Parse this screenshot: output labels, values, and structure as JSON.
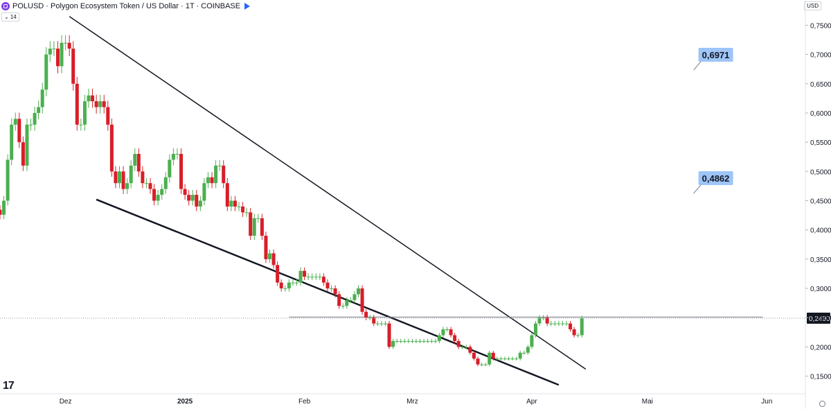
{
  "header": {
    "symbol_line": "POLUSD · Polygon Ecosystem Token / US Dollar · 1T · COINBASE",
    "interval_chip": "⌄ 14",
    "currency": "USD"
  },
  "chart_data": {
    "type": "candlestick",
    "y_ticks": [
      "0,7500",
      "0,7000",
      "0,6500",
      "0,6000",
      "0,5500",
      "0,5000",
      "0,4500",
      "0,4000",
      "0,3500",
      "0,3000",
      "0,2500",
      "0,2000",
      "0,1500"
    ],
    "x_ticks": [
      {
        "label": "Dez",
        "date": "2024-12-01"
      },
      {
        "label": "2025",
        "date": "2025-01-01"
      },
      {
        "label": "Feb",
        "date": "2025-02-01"
      },
      {
        "label": "Mrz",
        "date": "2025-03-01"
      },
      {
        "label": "Apr",
        "date": "2025-04-01"
      },
      {
        "label": "Mai",
        "date": "2025-05-01"
      },
      {
        "label": "Jun",
        "date": "2025-06-01"
      }
    ],
    "ylim": [
      0.13,
      0.77
    ],
    "x_range": [
      "2024-11-14",
      "2025-06-11"
    ],
    "first_date": "2024-11-14",
    "closes": [
      0.426,
      0.45,
      0.52,
      0.58,
      0.59,
      0.55,
      0.51,
      0.58,
      0.58,
      0.6,
      0.61,
      0.64,
      0.7,
      0.71,
      0.71,
      0.68,
      0.72,
      0.72,
      0.71,
      0.65,
      0.58,
      0.58,
      0.62,
      0.63,
      0.62,
      0.61,
      0.62,
      0.61,
      0.58,
      0.5,
      0.48,
      0.5,
      0.47,
      0.48,
      0.51,
      0.53,
      0.5,
      0.48,
      0.48,
      0.47,
      0.45,
      0.46,
      0.47,
      0.49,
      0.52,
      0.53,
      0.53,
      0.47,
      0.46,
      0.45,
      0.46,
      0.44,
      0.45,
      0.48,
      0.49,
      0.48,
      0.51,
      0.51,
      0.48,
      0.44,
      0.45,
      0.44,
      0.44,
      0.43,
      0.43,
      0.39,
      0.42,
      0.42,
      0.39,
      0.35,
      0.36,
      0.34,
      0.31,
      0.3,
      0.3,
      0.31,
      0.31,
      0.31,
      0.33,
      0.32,
      0.32,
      0.32,
      0.32,
      0.32,
      0.31,
      0.3,
      0.3,
      0.29,
      0.27,
      0.27,
      0.28,
      0.28,
      0.29,
      0.3,
      0.26,
      0.25,
      0.25,
      0.24,
      0.24,
      0.24,
      0.24,
      0.2,
      0.21,
      0.21,
      0.21,
      0.21,
      0.21,
      0.21,
      0.21,
      0.21,
      0.21,
      0.21,
      0.21,
      0.21,
      0.22,
      0.23,
      0.23,
      0.22,
      0.21,
      0.2,
      0.2,
      0.2,
      0.19,
      0.18,
      0.17,
      0.17,
      0.17,
      0.19,
      0.18,
      0.18,
      0.18,
      0.18,
      0.18,
      0.18,
      0.18,
      0.19,
      0.19,
      0.2,
      0.22,
      0.24,
      0.25,
      0.25,
      0.24,
      0.24,
      0.24,
      0.24,
      0.24,
      0.24,
      0.23,
      0.22,
      0.22,
      0.249
    ],
    "current_price": {
      "label": "0,2490",
      "value": 0.249
    },
    "wick_lines": [
      {
        "d1": "2024-12-02",
        "p1": 0.765,
        "d2": "2025-04-15",
        "p2": 0.162
      },
      {
        "d1": "2024-12-09",
        "p1": 0.452,
        "d2": "2025-04-08",
        "p2": 0.135
      }
    ],
    "horizontal_line": {
      "d1": "2025-01-28",
      "d2": "2025-05-31",
      "price": 0.251
    },
    "targets": [
      {
        "label": "0,6971",
        "price": 0.6971,
        "date": "2025-05-13"
      },
      {
        "label": "0,4862",
        "price": 0.4862,
        "date": "2025-05-13"
      }
    ],
    "colors": {
      "up": "#4caf50",
      "down": "#d81e28",
      "text": "#131722",
      "target_bg": "#9ec5f7",
      "price_tag": "#131722"
    }
  }
}
